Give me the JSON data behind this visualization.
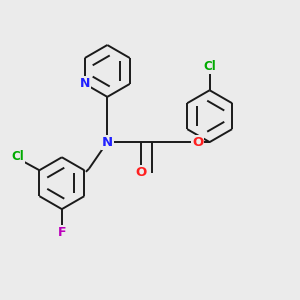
{
  "background_color": "#ebebeb",
  "bond_color": "#1a1a1a",
  "atom_colors": {
    "N": "#2020ff",
    "O": "#ff2020",
    "Cl": "#00aa00",
    "F": "#bb00bb"
  },
  "figsize": [
    3.0,
    3.0
  ],
  "dpi": 100,
  "lw": 1.4
}
